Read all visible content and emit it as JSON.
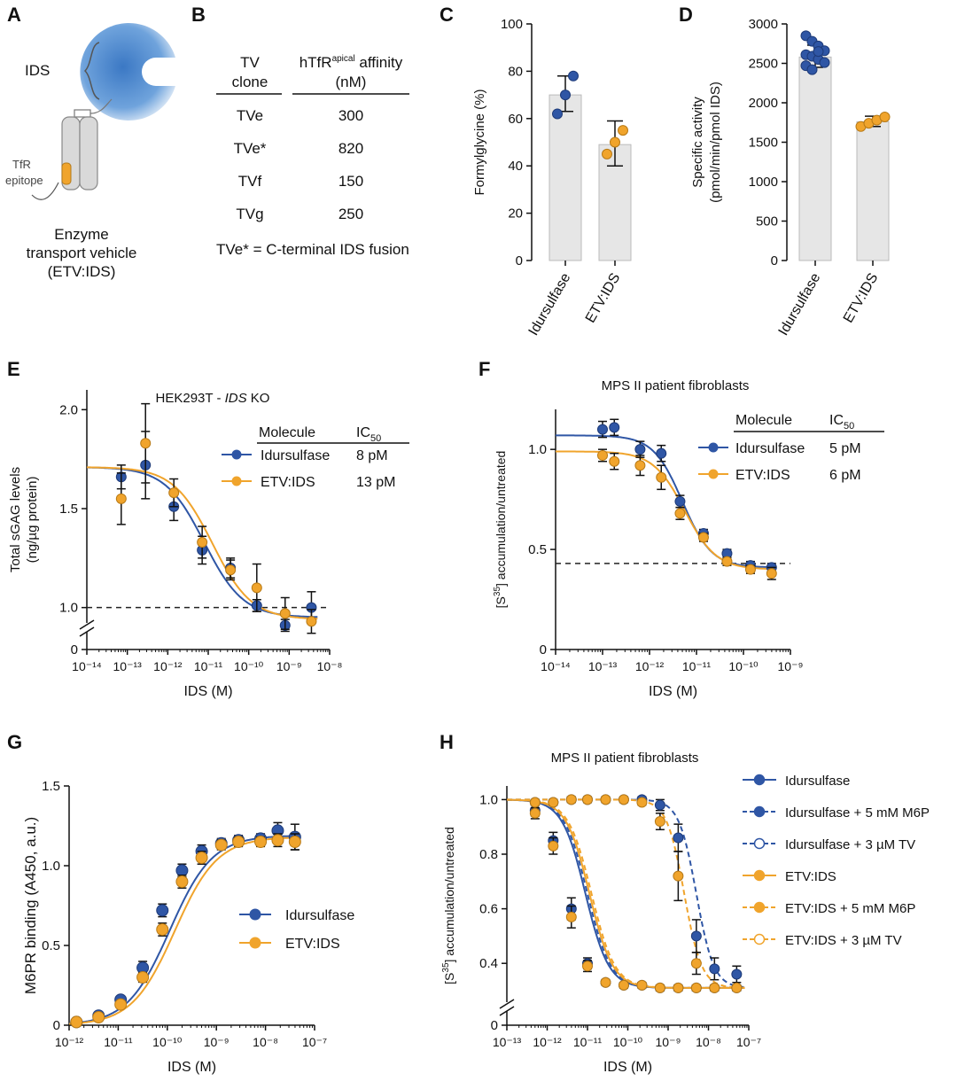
{
  "colors": {
    "blue": "#2f56a5",
    "orange": "#f0a42c",
    "bar": "#e6e6e6",
    "vesicle": "#3b78c4"
  },
  "panel_letters": [
    "A",
    "B",
    "C",
    "D",
    "E",
    "F",
    "G",
    "H"
  ],
  "panelA": {
    "ids_label": "IDS",
    "tfr_label": [
      "TfR",
      "epitope"
    ],
    "caption": [
      "Enzyme",
      "transport vehicle",
      "(ETV:IDS)"
    ]
  },
  "panelB": {
    "col1_header": [
      "TV",
      "clone"
    ],
    "col2_header_main": "hTfR",
    "col2_header_sup": "apical",
    "col2_header_rest": " affinity",
    "col2_header_unit": "(nM)",
    "rows": [
      [
        "TVe",
        "300"
      ],
      [
        "TVe*",
        "820"
      ],
      [
        "TVf",
        "150"
      ],
      [
        "TVg",
        "250"
      ]
    ],
    "footnote": "TVe* = C-terminal IDS fusion"
  },
  "chart_data": [
    {
      "panel": "C",
      "type": "bar",
      "categories": [
        "Idursulfase",
        "ETV:IDS"
      ],
      "values": [
        70,
        49
      ],
      "errors": [
        [
          63,
          78
        ],
        [
          40,
          59
        ]
      ],
      "points": [
        [
          62,
          70,
          78
        ],
        [
          45,
          50,
          55
        ]
      ],
      "ylabel": "Formylglycine (%)",
      "ylim": [
        0,
        100
      ],
      "yticks": [
        "0",
        "20",
        "40",
        "60",
        "80",
        "100"
      ]
    },
    {
      "panel": "D",
      "type": "bar",
      "categories": [
        "Idursulfase",
        "ETV:IDS"
      ],
      "values": [
        2580,
        1760
      ],
      "errors": [
        [
          2450,
          2730
        ],
        [
          1700,
          1830
        ]
      ],
      "points": [
        [
          2850,
          2780,
          2720,
          2660,
          2610,
          2590,
          2550,
          2510,
          2470,
          2420,
          2650
        ],
        [
          1700,
          1740,
          1780,
          1820
        ]
      ],
      "ylabel": [
        "Specific activity",
        "(pmol/min/pmol IDS)"
      ],
      "ylim": [
        0,
        3000
      ],
      "yticks": [
        "0",
        "500",
        "1000",
        "1500",
        "2000",
        "2500",
        "3000"
      ]
    },
    {
      "panel": "E",
      "type": "scatter",
      "title_pre": "HEK293T - ",
      "title_it": "IDS",
      "title_post": " KO",
      "xlabel": "IDS (M)",
      "ylabel": [
        "Total sGAG levels",
        "(ng/µg protein)"
      ],
      "xlim_log": [
        -14,
        -8
      ],
      "ylim": [
        0.9,
        2.1
      ],
      "yticks": [
        "1.0",
        "1.5",
        "2.0"
      ],
      "ytick_zero": "0",
      "xticks": [
        "10⁻¹⁴",
        "10⁻¹³",
        "10⁻¹²",
        "10⁻¹¹",
        "10⁻¹⁰",
        "10⁻⁹",
        "10⁻⁸"
      ],
      "baseline": 1.0,
      "legend_header": [
        "Molecule",
        "IC",
        "50"
      ],
      "series": [
        {
          "name": "Idursulfase",
          "ic50": "8 pM",
          "color": "blue",
          "fit": {
            "top": 1.71,
            "bottom": 0.95,
            "logic50": -11.1,
            "hill": 0.9
          },
          "x": [
            -13.15,
            -12.55,
            -11.85,
            -11.15,
            -10.45,
            -9.8,
            -9.1,
            -8.45
          ],
          "y": [
            1.66,
            1.72,
            1.51,
            1.29,
            1.2,
            1.01,
            0.91,
            1.0
          ],
          "err": [
            0.06,
            0.17,
            0.07,
            0.07,
            0.05,
            0.03,
            0.03,
            0.08
          ]
        },
        {
          "name": "ETV:IDS",
          "ic50": "13 pM",
          "color": "orange",
          "fit": {
            "top": 1.71,
            "bottom": 0.94,
            "logic50": -10.9,
            "hill": 0.9
          },
          "x": [
            -13.15,
            -12.55,
            -11.85,
            -11.15,
            -10.45,
            -9.8,
            -9.1,
            -8.45
          ],
          "y": [
            1.55,
            1.83,
            1.58,
            1.33,
            1.19,
            1.1,
            0.97,
            0.93
          ],
          "err": [
            0.13,
            0.2,
            0.07,
            0.08,
            0.05,
            0.12,
            0.08,
            0.06
          ]
        }
      ]
    },
    {
      "panel": "F",
      "type": "scatter",
      "title": "MPS II patient fibroblasts",
      "xlabel": "IDS (M)",
      "ylabel": [
        "[S",
        "35",
        "] accumulation/untreated"
      ],
      "xlim_log": [
        -14,
        -9
      ],
      "ylim": [
        0,
        1.2
      ],
      "yticks": [
        "0",
        "0.5",
        "1.0"
      ],
      "xticks": [
        "10⁻¹⁴",
        "10⁻¹³",
        "10⁻¹²",
        "10⁻¹¹",
        "10⁻¹⁰",
        "10⁻⁹"
      ],
      "baseline": 0.43,
      "legend_header": [
        "Molecule",
        "IC",
        "50"
      ],
      "series": [
        {
          "name": "Idursulfase",
          "ic50": "5 pM",
          "color": "blue",
          "fit": {
            "top": 1.07,
            "bottom": 0.41,
            "logic50": -11.3,
            "hill": 1.4
          },
          "x": [
            -13.0,
            -12.75,
            -12.2,
            -11.75,
            -11.35,
            -10.85,
            -10.35,
            -9.85,
            -9.4
          ],
          "y": [
            1.1,
            1.11,
            1.0,
            0.98,
            0.74,
            0.58,
            0.48,
            0.42,
            0.41
          ],
          "err": [
            0.04,
            0.04,
            0.04,
            0.04,
            0.03,
            0.02,
            0.02,
            0.02,
            0.02
          ]
        },
        {
          "name": "ETV:IDS",
          "ic50": "6 pM",
          "color": "orange",
          "fit": {
            "top": 0.99,
            "bottom": 0.4,
            "logic50": -11.25,
            "hill": 1.3
          },
          "x": [
            -13.0,
            -12.75,
            -12.2,
            -11.75,
            -11.35,
            -10.85,
            -10.35,
            -9.85,
            -9.4
          ],
          "y": [
            0.97,
            0.94,
            0.92,
            0.86,
            0.68,
            0.56,
            0.44,
            0.4,
            0.38
          ],
          "err": [
            0.03,
            0.04,
            0.05,
            0.06,
            0.03,
            0.02,
            0.02,
            0.02,
            0.03
          ]
        }
      ]
    },
    {
      "panel": "G",
      "type": "scatter",
      "xlabel": "IDS (M)",
      "ylabel": "M6PR binding (A450, a.u.)",
      "xlim_log": [
        -12,
        -7
      ],
      "ylim": [
        0,
        1.5
      ],
      "yticks": [
        "0",
        "0.5",
        "1.0",
        "1.5"
      ],
      "xticks": [
        "10⁻¹²",
        "10⁻¹¹",
        "10⁻¹⁰",
        "10⁻⁹",
        "10⁻⁸",
        "10⁻⁷"
      ],
      "series": [
        {
          "name": "Idursulfase",
          "color": "blue",
          "fit": {
            "top": 1.19,
            "bottom": 0.0,
            "logic50": -9.95,
            "hill": 1.0
          },
          "x": [
            -11.85,
            -11.4,
            -10.95,
            -10.5,
            -10.1,
            -9.7,
            -9.3,
            -8.9,
            -8.55,
            -8.1,
            -7.75,
            -7.4
          ],
          "y": [
            0.02,
            0.06,
            0.16,
            0.36,
            0.72,
            0.97,
            1.09,
            1.14,
            1.16,
            1.17,
            1.22,
            1.18
          ],
          "err": [
            0.01,
            0.02,
            0.02,
            0.04,
            0.04,
            0.04,
            0.04,
            0.03,
            0.03,
            0.03,
            0.05,
            0.08
          ]
        },
        {
          "name": "ETV:IDS",
          "color": "orange",
          "fit": {
            "top": 1.18,
            "bottom": 0.0,
            "logic50": -9.85,
            "hill": 1.0
          },
          "x": [
            -11.85,
            -11.4,
            -10.95,
            -10.5,
            -10.1,
            -9.7,
            -9.3,
            -8.9,
            -8.55,
            -8.1,
            -7.75,
            -7.4
          ],
          "y": [
            0.02,
            0.05,
            0.13,
            0.3,
            0.6,
            0.9,
            1.05,
            1.13,
            1.15,
            1.15,
            1.16,
            1.15
          ],
          "err": [
            0.01,
            0.02,
            0.02,
            0.03,
            0.04,
            0.04,
            0.04,
            0.03,
            0.03,
            0.03,
            0.04,
            0.05
          ]
        }
      ]
    },
    {
      "panel": "H",
      "type": "scatter",
      "title": "MPS II patient fibroblasts",
      "xlabel": "IDS (M)",
      "ylabel": [
        "[S",
        "35",
        "] accumulation/untreated"
      ],
      "xlim_log": [
        -13,
        -7
      ],
      "ylim": [
        0.3,
        1.05
      ],
      "yticks": [
        "0.4",
        "0.6",
        "0.8",
        "1.0"
      ],
      "ytick_zero": "0",
      "xticks": [
        "10⁻¹³",
        "10⁻¹²",
        "10⁻¹¹",
        "10⁻¹⁰",
        "10⁻⁹",
        "10⁻⁸",
        "10⁻⁷"
      ],
      "series": [
        {
          "name": "Idursulfase",
          "color": "blue",
          "dash": false,
          "open": false,
          "fit": {
            "top": 1.0,
            "bottom": 0.31,
            "logic50": -11.05,
            "hill": 1.5
          },
          "x": [
            -12.3,
            -11.85,
            -11.4,
            -11.0,
            -10.55,
            -10.1,
            -9.65,
            -9.2,
            -8.75,
            -8.3,
            -7.85,
            -7.3
          ],
          "y": [
            0.96,
            0.85,
            0.6,
            0.4,
            0.33,
            0.32,
            0.32,
            0.31,
            0.31,
            0.31,
            0.31,
            0.31
          ],
          "err": [
            0.02,
            0.03,
            0.04,
            0.02,
            0.01,
            0.01,
            0.01,
            0.01,
            0.01,
            0.01,
            0.01,
            0.01
          ]
        },
        {
          "name": "Idursulfase + 5 mM M6P",
          "color": "blue",
          "dash": true,
          "open": false,
          "fit": {
            "top": 1.0,
            "bottom": 0.31,
            "logic50": -8.3,
            "hill": 2.0
          },
          "x": [
            -12.3,
            -11.85,
            -11.4,
            -11.0,
            -10.55,
            -10.1,
            -9.65,
            -9.2,
            -8.75,
            -8.3,
            -7.85,
            -7.3
          ],
          "y": [
            0.99,
            0.99,
            1.0,
            1.0,
            1.0,
            1.0,
            1.0,
            0.98,
            0.86,
            0.5,
            0.38,
            0.36
          ],
          "err": [
            0.01,
            0.01,
            0.01,
            0.01,
            0.01,
            0.01,
            0.01,
            0.02,
            0.05,
            0.06,
            0.04,
            0.03
          ]
        },
        {
          "name": "Idursulfase + 3 µM TV",
          "color": "blue",
          "dash": true,
          "open": true,
          "fit": {
            "top": 1.0,
            "bottom": 0.31,
            "logic50": -11.0,
            "hill": 1.5
          },
          "x": [],
          "y": [],
          "err": []
        },
        {
          "name": "ETV:IDS",
          "color": "orange",
          "dash": false,
          "open": false,
          "fit": {
            "top": 1.0,
            "bottom": 0.31,
            "logic50": -10.95,
            "hill": 1.5
          },
          "x": [
            -12.3,
            -11.85,
            -11.4,
            -11.0,
            -10.55,
            -10.1,
            -9.65,
            -9.2,
            -8.75,
            -8.3,
            -7.85,
            -7.3
          ],
          "y": [
            0.95,
            0.83,
            0.57,
            0.39,
            0.33,
            0.32,
            0.32,
            0.31,
            0.31,
            0.31,
            0.31,
            0.31
          ],
          "err": [
            0.02,
            0.03,
            0.04,
            0.02,
            0.01,
            0.01,
            0.01,
            0.01,
            0.01,
            0.01,
            0.01,
            0.01
          ]
        },
        {
          "name": "ETV:IDS + 5 mM M6P",
          "color": "orange",
          "dash": true,
          "open": false,
          "fit": {
            "top": 1.0,
            "bottom": 0.31,
            "logic50": -8.6,
            "hill": 2.0
          },
          "x": [
            -12.3,
            -11.85,
            -11.4,
            -11.0,
            -10.55,
            -10.1,
            -9.65,
            -9.2,
            -8.75,
            -8.3
          ],
          "y": [
            0.99,
            0.99,
            1.0,
            1.0,
            1.0,
            1.0,
            0.99,
            0.92,
            0.72,
            0.4
          ],
          "err": [
            0.01,
            0.01,
            0.01,
            0.01,
            0.01,
            0.01,
            0.01,
            0.03,
            0.09,
            0.04
          ]
        },
        {
          "name": "ETV:IDS + 3 µM TV",
          "color": "orange",
          "dash": true,
          "open": true,
          "fit": {
            "top": 1.0,
            "bottom": 0.31,
            "logic50": -10.9,
            "hill": 1.5
          },
          "x": [],
          "y": [],
          "err": []
        }
      ]
    }
  ]
}
